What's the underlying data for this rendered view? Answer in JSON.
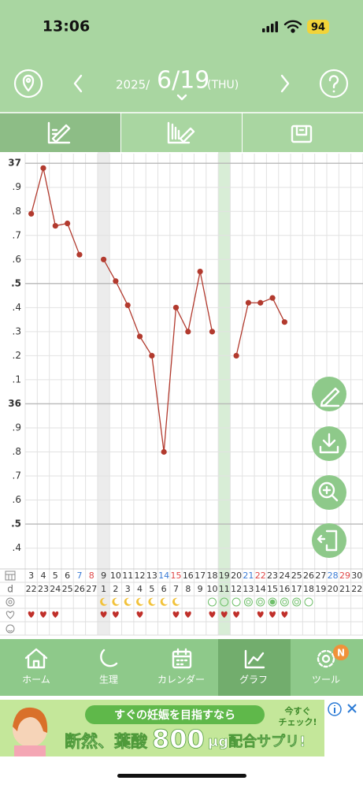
{
  "status_bar": {
    "time": "13:06",
    "battery": "94"
  },
  "header": {
    "year": "2025/",
    "date": "6/19",
    "weekday": "(THU)"
  },
  "chart_data": {
    "type": "line",
    "categories": [
      "3",
      "4",
      "5",
      "6",
      "7",
      "8",
      "9",
      "10",
      "11",
      "12",
      "13",
      "14",
      "15",
      "16",
      "17",
      "18",
      "19",
      "20",
      "21",
      "22",
      "23",
      "24",
      "25",
      "26",
      "27",
      "28",
      "29",
      "30"
    ],
    "category_colors": [
      "#333",
      "#333",
      "#333",
      "#333",
      "#3a7bd5",
      "#e04848",
      "#333",
      "#333",
      "#333",
      "#333",
      "#333",
      "#3a7bd5",
      "#e04848",
      "#333",
      "#333",
      "#333",
      "#333",
      "#333",
      "#3a7bd5",
      "#e04848",
      "#333",
      "#333",
      "#333",
      "#333",
      "#333",
      "#3a7bd5",
      "#e04848",
      "#333"
    ],
    "series": [
      {
        "color": "#b23a2e",
        "values": [
          36.79,
          36.98,
          36.74,
          36.75,
          36.62,
          null,
          36.6,
          36.51,
          36.41,
          36.28,
          36.2,
          35.8,
          36.4,
          36.3,
          36.55,
          36.3,
          null,
          36.2,
          36.42,
          36.42,
          36.44,
          36.34,
          null,
          null,
          null,
          null,
          null,
          null
        ]
      }
    ],
    "ylim": [
      35.32,
      37.04
    ],
    "yticks": [
      37,
      {
        "value": 36.9,
        "label": ".9"
      },
      {
        "value": 36.8,
        "label": ".8"
      },
      {
        "value": 36.7,
        "label": ".7"
      },
      {
        "value": 36.6,
        "label": ".6"
      },
      {
        "value": 36.5,
        "label": ".5"
      },
      {
        "value": 36.4,
        "label": ".4"
      },
      {
        "value": 36.3,
        "label": ".3"
      },
      {
        "value": 36.2,
        "label": ".2"
      },
      {
        "value": 36.1,
        "label": ".1"
      },
      36,
      {
        "value": 35.9,
        "label": ".9"
      },
      {
        "value": 35.8,
        "label": ".8"
      },
      {
        "value": 35.7,
        "label": ".7"
      },
      {
        "value": 35.6,
        "label": ".6"
      },
      {
        "value": 35.5,
        "label": ".5"
      },
      {
        "value": 35.4,
        "label": ".4"
      }
    ],
    "grid": true,
    "cycle_day_label": "d",
    "cycle_days": [
      22,
      23,
      24,
      25,
      26,
      27,
      1,
      2,
      3,
      4,
      5,
      6,
      7,
      8,
      9,
      10,
      11,
      12,
      13,
      14,
      15,
      16,
      17,
      18,
      19,
      20,
      21,
      22
    ]
  },
  "nav": {
    "items": [
      "ホーム",
      "生理",
      "カレンダー",
      "グラフ",
      "ツール"
    ],
    "badge": "N"
  },
  "ad": {
    "headline": "すぐの妊娠を目指すなら",
    "main_pre": "断然、葉酸",
    "main_num": "800",
    "main_post": "μg配合サプリ!",
    "cta_1": "今すぐ",
    "cta_2": "チェック!"
  }
}
